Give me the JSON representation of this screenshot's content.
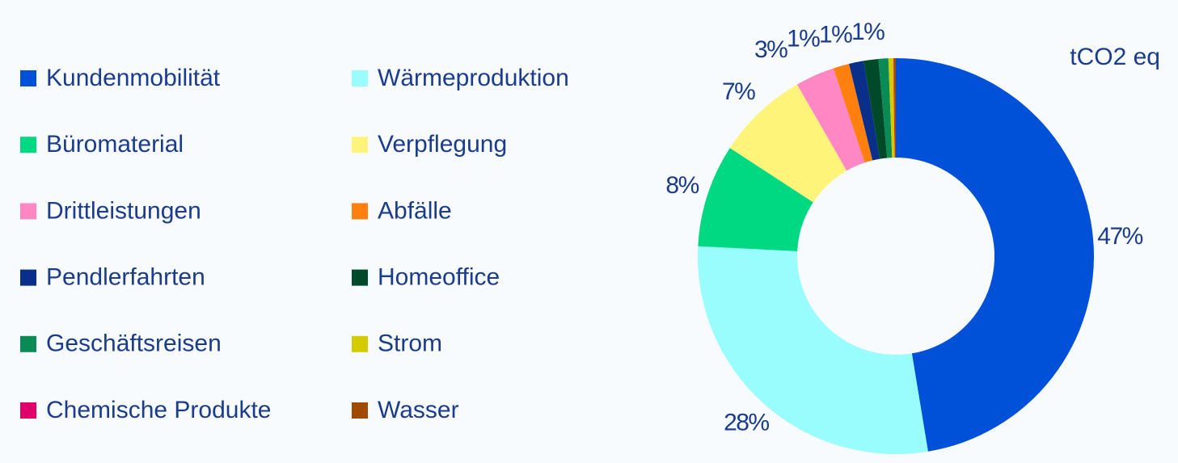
{
  "chart_data": {
    "type": "donut",
    "subtitle": "tCO2 eq",
    "categories": [
      "Kundenmobilität",
      "Wärmeproduktion",
      "Büromaterial",
      "Verpflegung",
      "Drittleistungen",
      "Abfälle",
      "Pendlerfahrten",
      "Homeoffice",
      "Geschäftsreisen",
      "Strom",
      "Chemische Produkte",
      "Wasser"
    ],
    "values": [
      47.4,
      28.4,
      8.4,
      7.5,
      3.2,
      1.3,
      1.2,
      1.2,
      0.8,
      0.4,
      0.05,
      0.15
    ],
    "value_labels": [
      "47%",
      "28%",
      "8%",
      "7%",
      "3%",
      "1%",
      "1%",
      "1%",
      null,
      null,
      null,
      null
    ],
    "colors": [
      "#0050d8",
      "#99fdfd",
      "#00d882",
      "#fff47a",
      "#ff88c4",
      "#ff7f0f",
      "#0a2f8a",
      "#004a2a",
      "#0a8a55",
      "#d4cc00",
      "#e0006a",
      "#a04a00"
    ],
    "legend": "left"
  }
}
